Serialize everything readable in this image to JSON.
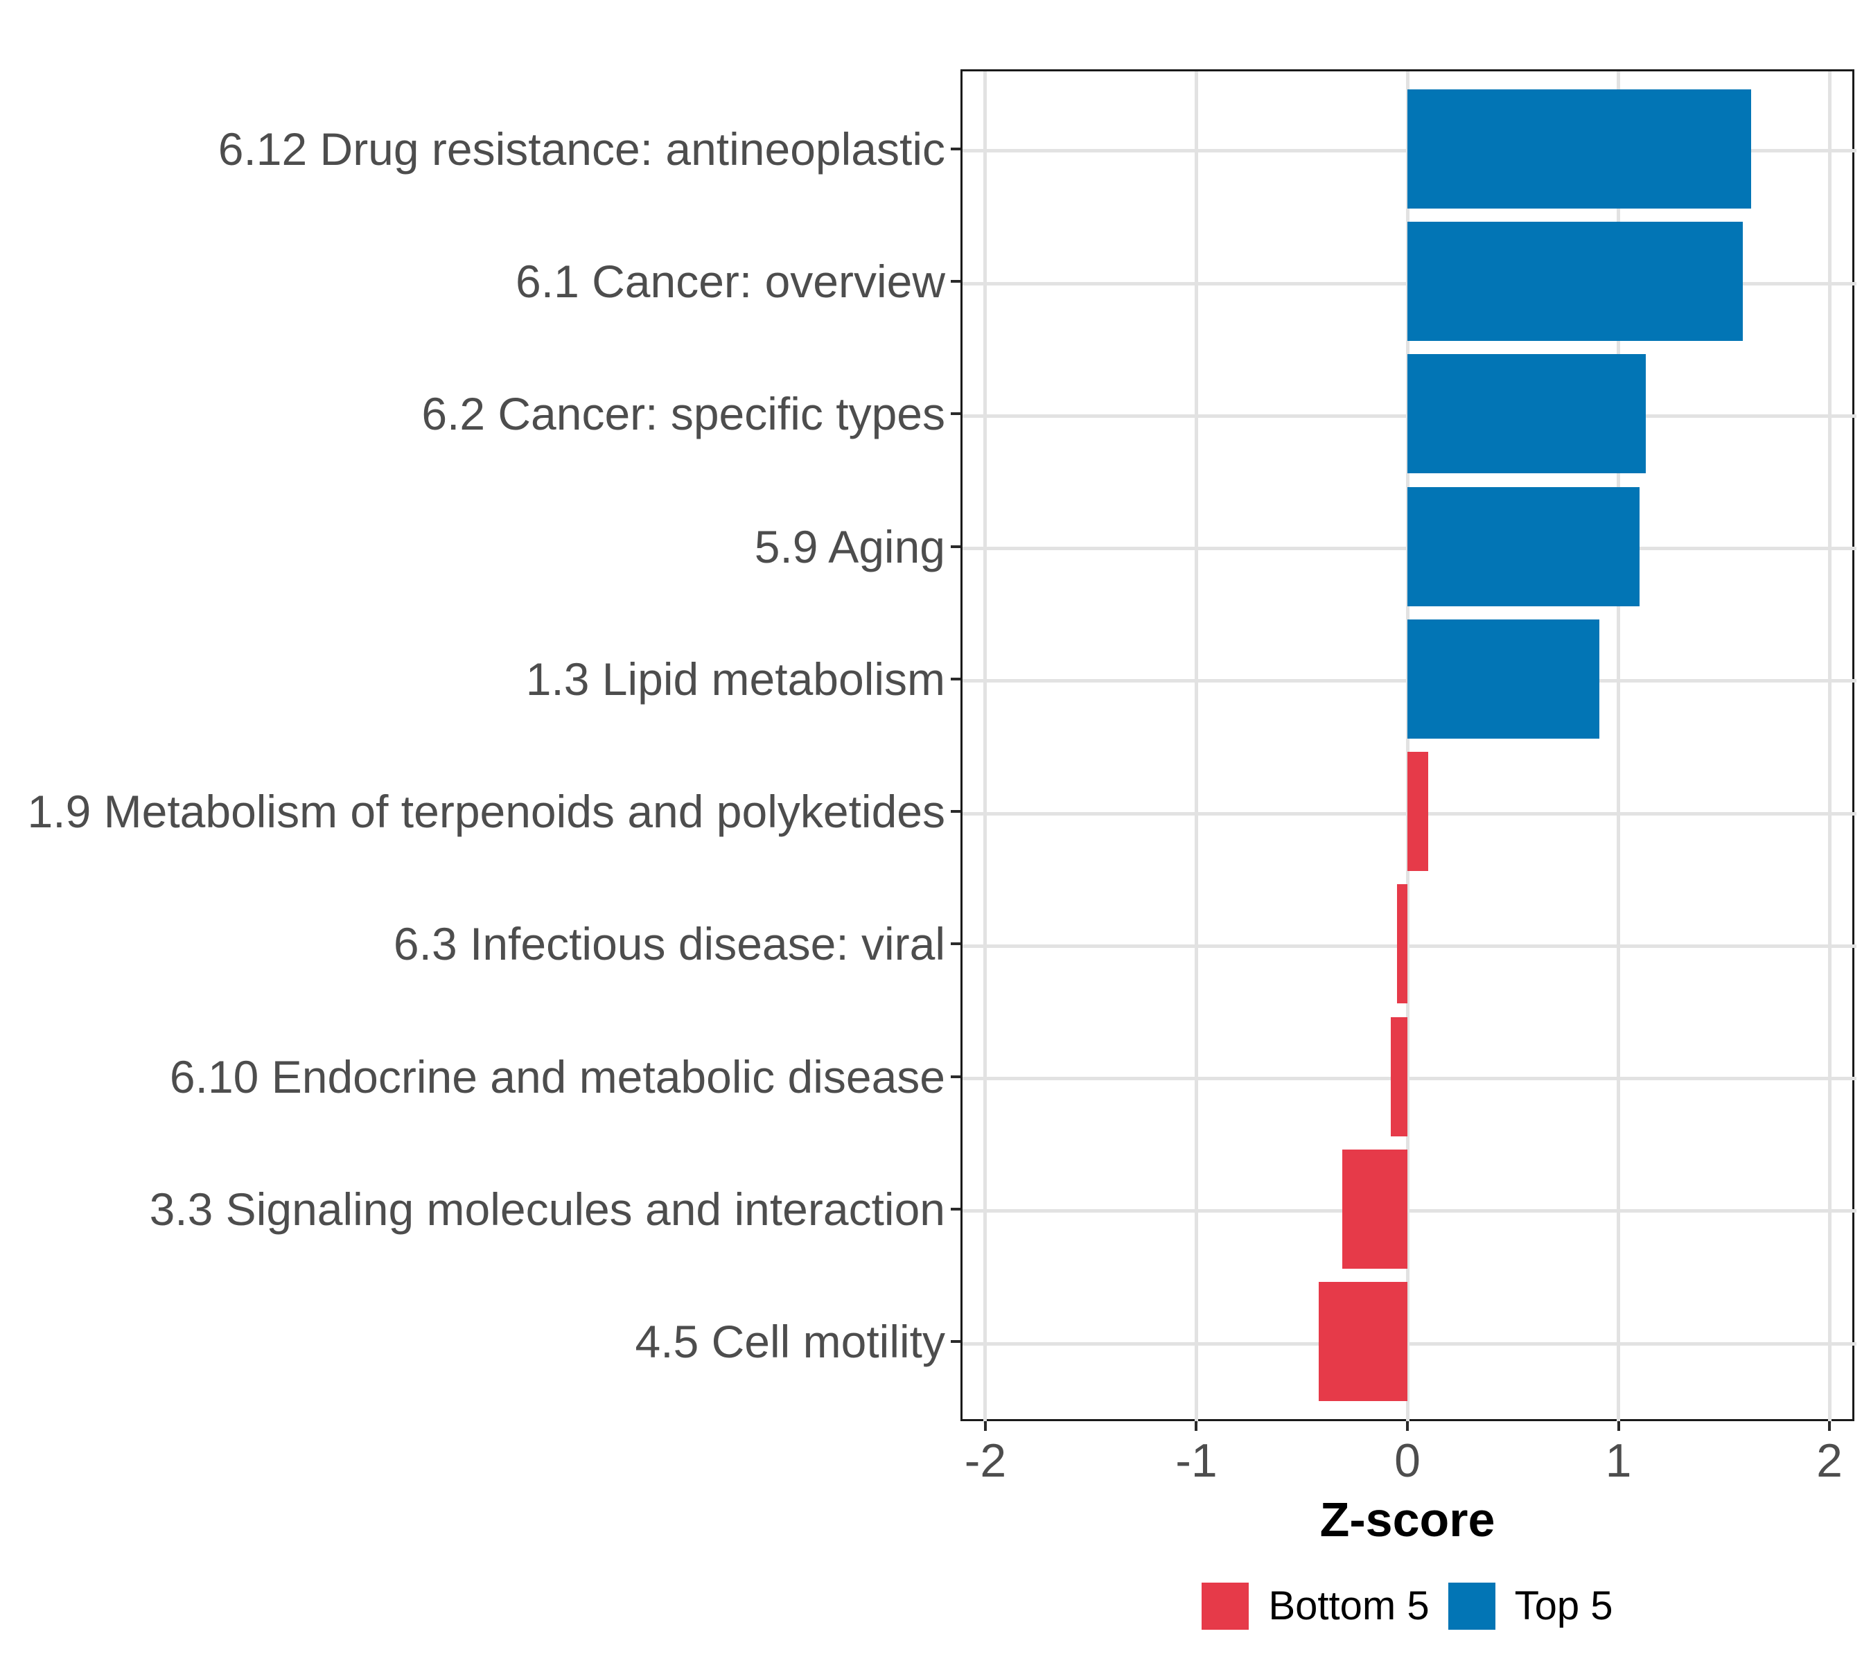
{
  "chart_data": {
    "type": "bar",
    "orientation": "horizontal",
    "title": "",
    "xlabel": "Z-score",
    "ylabel": "",
    "xlim": [
      -2.118,
      2.118
    ],
    "x_ticks": [
      {
        "value": -2,
        "label": "-2"
      },
      {
        "value": -1,
        "label": "-1"
      },
      {
        "value": 0,
        "label": "0"
      },
      {
        "value": 1,
        "label": "1"
      },
      {
        "value": 2,
        "label": "2"
      }
    ],
    "grid": "major-only",
    "legend_position": "bottom",
    "bars": [
      {
        "label": "6.12 Drug resistance: antineoplastic",
        "value": 1.63,
        "group": "Top 5"
      },
      {
        "label": "6.1 Cancer: overview",
        "value": 1.59,
        "group": "Top 5"
      },
      {
        "label": "6.2 Cancer: specific types",
        "value": 1.13,
        "group": "Top 5"
      },
      {
        "label": "5.9 Aging",
        "value": 1.1,
        "group": "Top 5"
      },
      {
        "label": "1.3 Lipid metabolism",
        "value": 0.91,
        "group": "Top 5"
      },
      {
        "label": "1.9 Metabolism of terpenoids and polyketides",
        "value": 0.1,
        "group": "Bottom 5"
      },
      {
        "label": "6.3 Infectious disease: viral",
        "value": -0.05,
        "group": "Bottom 5"
      },
      {
        "label": "6.10 Endocrine and metabolic disease",
        "value": -0.08,
        "group": "Bottom 5"
      },
      {
        "label": "3.3 Signaling molecules and interaction",
        "value": -0.31,
        "group": "Bottom 5"
      },
      {
        "label": "4.5 Cell motility",
        "value": -0.42,
        "group": "Bottom 5"
      }
    ],
    "legend": [
      {
        "label": "Bottom 5",
        "color": "#E63A49"
      },
      {
        "label": "Top 5",
        "color": "#0275B5"
      }
    ],
    "group_colors": {
      "Top 5": "#0275B5",
      "Bottom 5": "#E63A49"
    }
  },
  "style_colors": {
    "gridline": "#E2E2E2",
    "panel_border": "#1A1A1A",
    "axis_text": "#4D4D4D",
    "tick_mark": "#2A2A2A",
    "axis_title": "#000000",
    "legend_text": "#000000",
    "background": "#FFFFFF"
  }
}
